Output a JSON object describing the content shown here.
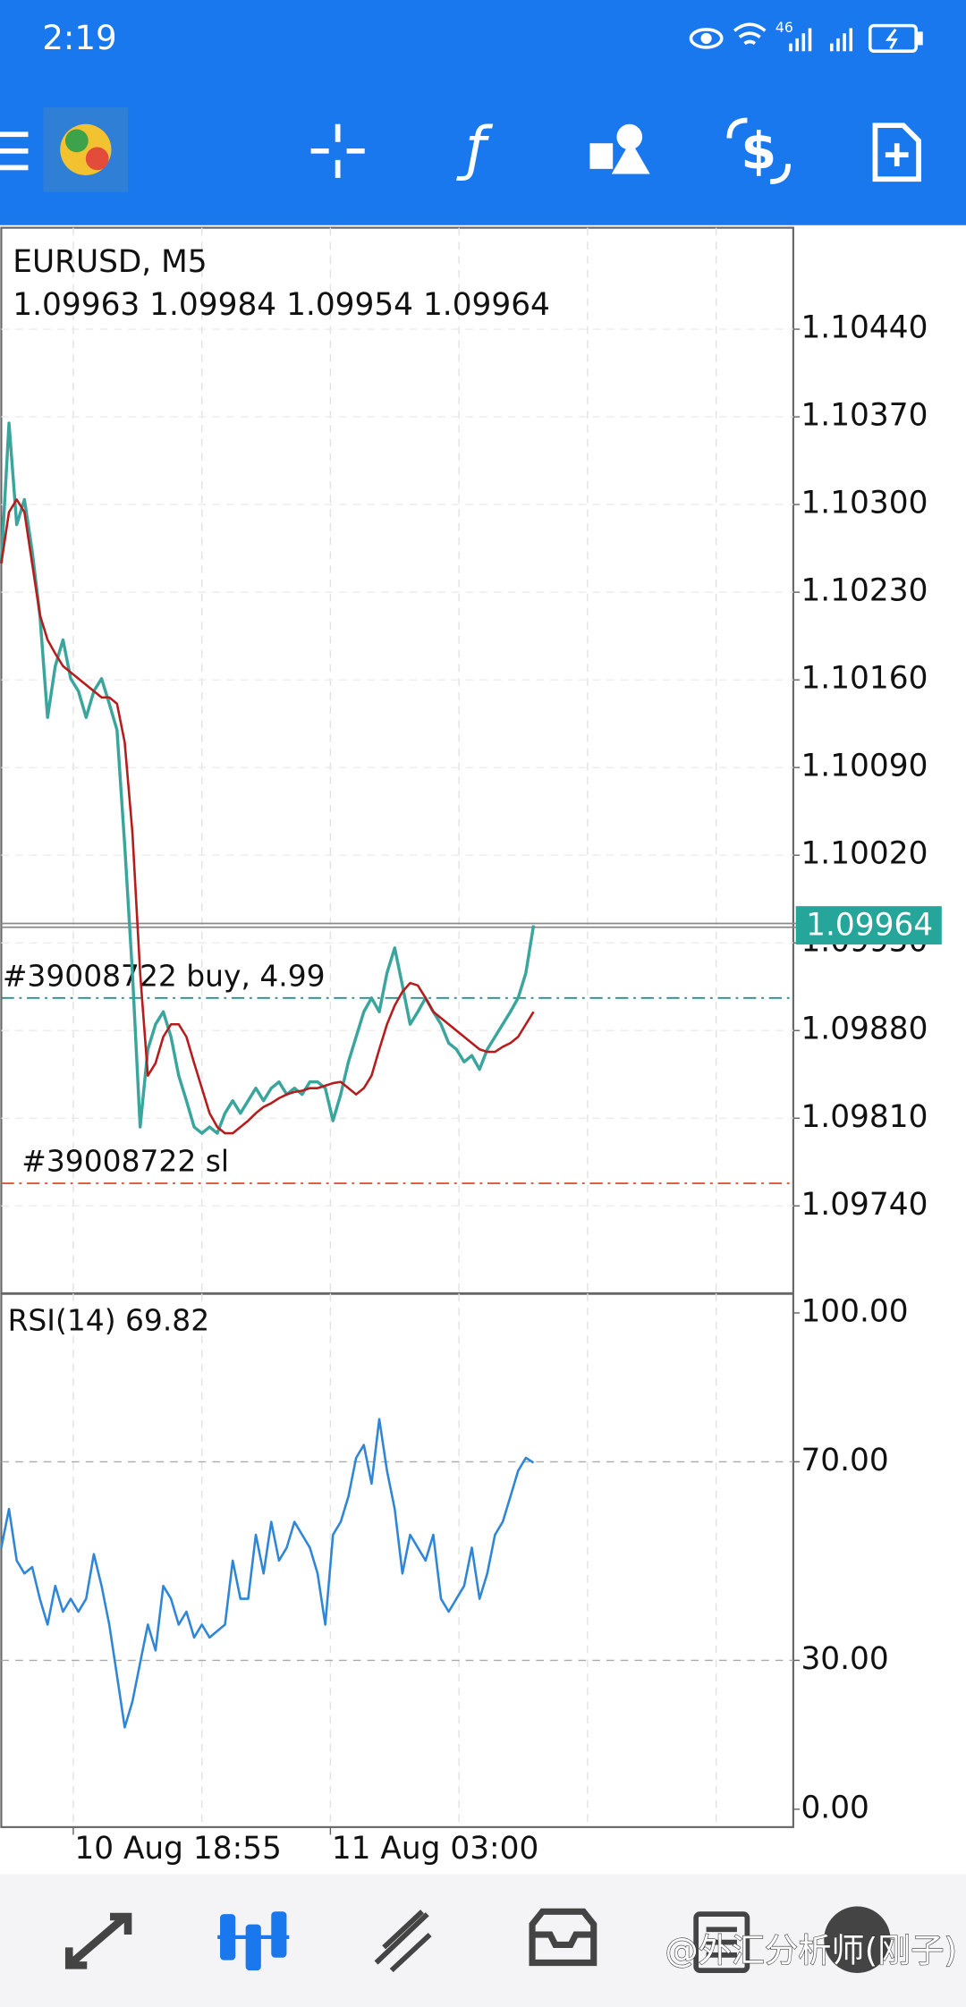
{
  "status_bar": {
    "time": "2:19",
    "network": "46"
  },
  "watermark": "@外汇分析师(刚子)",
  "chart_data": [
    {
      "type": "line",
      "title": "EURUSD, M5",
      "ohlc": [
        1.09963,
        1.09984,
        1.09954,
        1.09964
      ],
      "x": [
        0,
        3,
        6,
        9,
        12,
        15,
        18,
        21,
        24,
        27,
        30,
        33,
        36,
        39,
        42,
        45,
        48,
        51,
        54,
        57,
        60,
        63,
        66,
        69,
        72,
        75,
        78,
        81,
        84,
        87,
        90,
        93,
        96,
        99,
        102,
        105,
        108,
        111,
        114,
        117,
        120,
        123,
        126,
        129,
        132,
        135,
        138,
        141,
        144,
        147,
        150,
        153,
        156,
        159,
        162,
        165,
        168,
        171,
        174,
        177,
        180,
        183,
        186,
        189,
        192,
        195,
        198,
        201,
        204,
        207
      ],
      "xlim": [
        0,
        308
      ],
      "xgrid": [
        28,
        78,
        128,
        178,
        228,
        278
      ],
      "ylim": [
        1.0967,
        1.10521
      ],
      "yticks": [
        {
          "value": 1.1044,
          "label": "1.10440"
        },
        {
          "value": 1.1037,
          "label": "1.10370"
        },
        {
          "value": 1.103,
          "label": "1.10300"
        },
        {
          "value": 1.1023,
          "label": "1.10230"
        },
        {
          "value": 1.1016,
          "label": "1.10160"
        },
        {
          "value": 1.1009,
          "label": "1.10090"
        },
        {
          "value": 1.1002,
          "label": "1.10020"
        },
        {
          "value": 1.0995,
          "label": "1.09950"
        },
        {
          "value": 1.0988,
          "label": "1.09880"
        },
        {
          "value": 1.0981,
          "label": "1.09810"
        },
        {
          "value": 1.0974,
          "label": "1.09740"
        }
      ],
      "grid": true,
      "series": [
        {
          "color": "#3aa59c",
          "values": [
            1.10253,
            1.10365,
            1.10284,
            1.10304,
            1.10263,
            1.10212,
            1.1013,
            1.10171,
            1.10192,
            1.10161,
            1.10151,
            1.1013,
            1.10151,
            1.10161,
            1.10141,
            1.1012,
            1.10028,
            1.09926,
            1.09803,
            1.09865,
            1.09885,
            1.09895,
            1.09875,
            1.09844,
            1.09824,
            1.09803,
            1.09798,
            1.09803,
            1.09798,
            1.09814,
            1.09824,
            1.09814,
            1.09824,
            1.09834,
            1.09824,
            1.09834,
            1.09839,
            1.09829,
            1.09834,
            1.09829,
            1.09839,
            1.09839,
            1.09834,
            1.09808,
            1.09829,
            1.09855,
            1.09875,
            1.09895,
            1.09906,
            1.09895,
            1.09926,
            1.09946,
            1.09916,
            1.09885,
            1.09895,
            1.09906,
            1.09895,
            1.09885,
            1.0987,
            1.09865,
            1.09855,
            1.0986,
            1.09849,
            1.09865,
            1.09875,
            1.09885,
            1.09895,
            1.09906,
            1.09926,
            1.09964
          ]
        },
        {
          "color": "#b71c1c",
          "values": [
            1.10253,
            1.10294,
            1.10304,
            1.10294,
            1.10253,
            1.10212,
            1.10192,
            1.10181,
            1.10171,
            1.10166,
            1.10161,
            1.10156,
            1.10151,
            1.10146,
            1.10146,
            1.10141,
            1.1011,
            1.10038,
            1.09926,
            1.09844,
            1.09854,
            1.09875,
            1.09885,
            1.09885,
            1.09875,
            1.09854,
            1.09834,
            1.09814,
            1.09803,
            1.09798,
            1.09798,
            1.09803,
            1.09808,
            1.09814,
            1.09819,
            1.09822,
            1.09826,
            1.09829,
            1.09831,
            1.09832,
            1.09834,
            1.09834,
            1.09836,
            1.09838,
            1.09839,
            1.09834,
            1.09829,
            1.09834,
            1.09844,
            1.09865,
            1.09885,
            1.099,
            1.09911,
            1.09918,
            1.09916,
            1.09906,
            1.09895,
            1.0989,
            1.09885,
            1.0988,
            1.09875,
            1.0987,
            1.09865,
            1.09863,
            1.09863,
            1.09867,
            1.0987,
            1.09875,
            1.09885,
            1.09895
          ]
        }
      ],
      "lines": [
        {
          "value": 1.09964,
          "color": "#8a8a8a",
          "badge": "#26a69a"
        },
        {
          "value": 1.09906,
          "label": "#39008722 buy, 4.99",
          "color": "#2a8f88"
        },
        {
          "value": 1.09758,
          "label": "#39008722 sl",
          "color": "#e0553a"
        }
      ]
    },
    {
      "type": "line",
      "title": "RSI(14) 69.82",
      "ylim": [
        -3.6,
        103.9
      ],
      "yticks": [
        {
          "value": 100,
          "label": "100.00"
        },
        {
          "value": 70,
          "label": "70.00"
        },
        {
          "value": 30,
          "label": "30.00"
        },
        {
          "value": 0,
          "label": "0.00"
        }
      ],
      "xticks": [
        {
          "value": 28,
          "label": "10 Aug 18:55"
        },
        {
          "value": 128,
          "label": "11 Aug 03:00"
        }
      ],
      "series": [
        {
          "color": "#2f86d6",
          "values": [
            52.7,
            60.5,
            50.1,
            47.5,
            48.8,
            42.4,
            37.2,
            45.0,
            39.8,
            42.4,
            39.8,
            42.4,
            51.4,
            45.0,
            37.2,
            26.9,
            16.5,
            21.7,
            29.5,
            37.2,
            32.0,
            45.0,
            42.4,
            37.2,
            39.8,
            34.6,
            37.2,
            34.6,
            35.9,
            37.2,
            50.1,
            42.4,
            42.4,
            55.3,
            47.5,
            57.9,
            50.1,
            52.7,
            57.9,
            55.3,
            52.7,
            47.5,
            37.2,
            55.3,
            57.9,
            63.0,
            70.8,
            73.4,
            65.6,
            78.6,
            68.2,
            60.5,
            47.5,
            55.3,
            52.7,
            50.1,
            55.3,
            42.4,
            39.8,
            42.4,
            45.0,
            52.7,
            42.4,
            47.5,
            55.3,
            57.9,
            63.0,
            68.2,
            70.8,
            69.82
          ]
        }
      ]
    }
  ]
}
